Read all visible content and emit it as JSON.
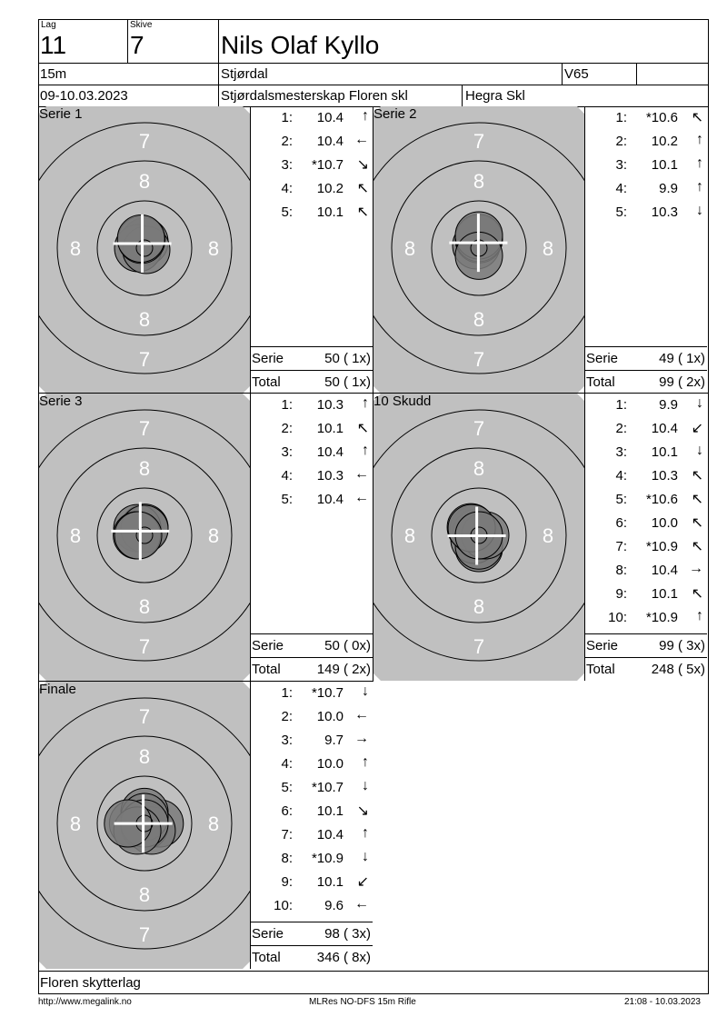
{
  "header": {
    "lag_label": "Lag",
    "lag": "11",
    "skive_label": "Skive",
    "skive": "7",
    "name": "Nils Olaf Kyllo",
    "distance": "15m",
    "club": "Stjørdal",
    "class": "V65",
    "class_extra": "",
    "date": "09-10.03.2023",
    "event": "Stjørdalsmesterskap Floren skl",
    "organizer": "Hegra Skl"
  },
  "sections": [
    {
      "title": "Serie 1",
      "shots": [
        [
          "1:",
          "10.4",
          "N"
        ],
        [
          "2:",
          "10.4",
          "W"
        ],
        [
          "3:",
          "*10.7",
          "SE"
        ],
        [
          "4:",
          "10.2",
          "NNW"
        ],
        [
          "5:",
          "10.1",
          "NNW"
        ]
      ],
      "serie_label": "Serie",
      "serie": "50 ( 1x)",
      "total_label": "Total",
      "total": "50 ( 1x)"
    },
    {
      "title": "Serie 2",
      "shots": [
        [
          "1:",
          "*10.6",
          "NW"
        ],
        [
          "2:",
          "10.2",
          "N"
        ],
        [
          "3:",
          "10.1",
          "N"
        ],
        [
          "4:",
          "9.9",
          "N"
        ],
        [
          "5:",
          "10.3",
          "S"
        ]
      ],
      "serie_label": "Serie",
      "serie": "49 ( 1x)",
      "total_label": "Total",
      "total": "99 ( 2x)"
    },
    {
      "title": "Serie 3",
      "shots": [
        [
          "1:",
          "10.3",
          "N"
        ],
        [
          "2:",
          "10.1",
          "NW"
        ],
        [
          "3:",
          "10.4",
          "N"
        ],
        [
          "4:",
          "10.3",
          "W"
        ],
        [
          "5:",
          "10.4",
          "W"
        ]
      ],
      "serie_label": "Serie",
      "serie": "50 ( 0x)",
      "total_label": "Total",
      "total": "149 ( 2x)"
    },
    {
      "title": "10 Skudd",
      "shots": [
        [
          "1:",
          "9.9",
          "S"
        ],
        [
          "2:",
          "10.4",
          "SW"
        ],
        [
          "3:",
          "10.1",
          "S"
        ],
        [
          "4:",
          "10.3",
          "NW"
        ],
        [
          "5:",
          "*10.6",
          "NW"
        ],
        [
          "6:",
          "10.0",
          "NW"
        ],
        [
          "7:",
          "*10.9",
          "NW"
        ],
        [
          "8:",
          "10.4",
          "E"
        ],
        [
          "9:",
          "10.1",
          "NW"
        ],
        [
          "10:",
          "*10.9",
          "N"
        ]
      ],
      "serie_label": "Serie",
      "serie": "99 ( 3x)",
      "total_label": "Total",
      "total": "248 ( 5x)"
    },
    {
      "title": "Finale",
      "shots": [
        [
          "1:",
          "*10.7",
          "S"
        ],
        [
          "2:",
          "10.0",
          "W"
        ],
        [
          "3:",
          "9.7",
          "E"
        ],
        [
          "4:",
          "10.0",
          "N"
        ],
        [
          "5:",
          "*10.7",
          "S"
        ],
        [
          "6:",
          "10.1",
          "SE"
        ],
        [
          "7:",
          "10.4",
          "N"
        ],
        [
          "8:",
          "*10.9",
          "S"
        ],
        [
          "9:",
          "10.1",
          "SW"
        ],
        [
          "10:",
          "9.6",
          "W"
        ]
      ],
      "serie_label": "Serie",
      "serie": "98 ( 3x)",
      "total_label": "Total",
      "total": "346 ( 8x)"
    }
  ],
  "ring_labels": [
    "7",
    "8"
  ],
  "footer": {
    "club": "Floren skytterlag",
    "url": "http://www.megalink.no",
    "software": "MLRes NO-DFS 15m Rifle",
    "printed": "21:08 - 10.03.2023"
  },
  "colors": {
    "target_bg": "#c0c0c0",
    "shot": "#7a7a7a"
  }
}
